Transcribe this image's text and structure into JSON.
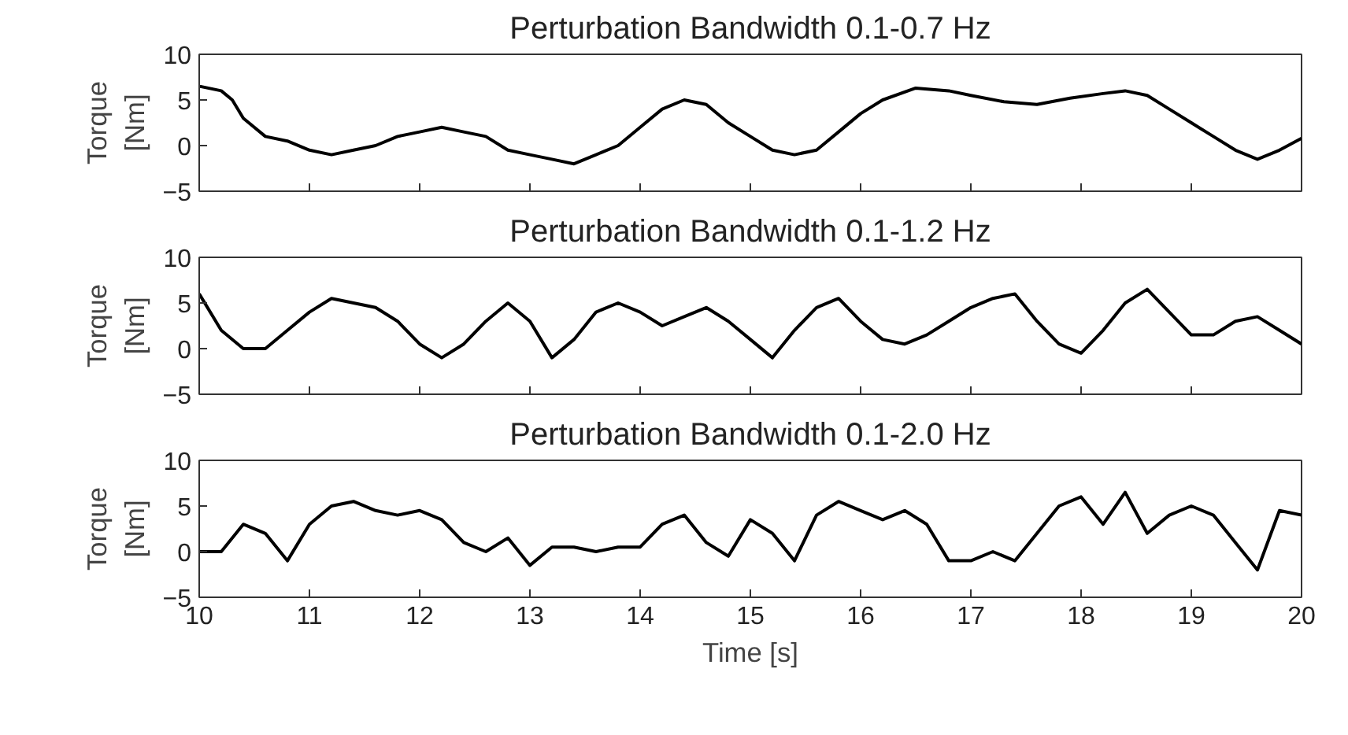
{
  "chart_data": [
    {
      "type": "line",
      "title": "Perturbation Bandwidth 0.1-0.7 Hz",
      "ylabel": "Torque\n[Nm]",
      "xlim": [
        10,
        20
      ],
      "xticks": [
        10,
        11,
        12,
        13,
        14,
        15,
        16,
        17,
        18,
        19,
        20
      ],
      "ylim": [
        -5,
        10
      ],
      "yticks": [
        -5,
        0,
        5,
        10
      ],
      "tick_labels": "y",
      "grid": false,
      "x": [
        10,
        10.2,
        10.3,
        10.4,
        10.6,
        10.8,
        11,
        11.2,
        11.4,
        11.6,
        11.8,
        12,
        12.2,
        12.4,
        12.6,
        12.8,
        13,
        13.2,
        13.4,
        13.6,
        13.8,
        14,
        14.2,
        14.4,
        14.6,
        14.8,
        15,
        15.2,
        15.4,
        15.6,
        15.8,
        16,
        16.2,
        16.5,
        16.8,
        17,
        17.3,
        17.6,
        17.9,
        18.2,
        18.4,
        18.6,
        18.8,
        19,
        19.2,
        19.4,
        19.6,
        19.8,
        20
      ],
      "series": [
        {
          "color": "#000000",
          "values": [
            6.5,
            6,
            5,
            3,
            1,
            0.5,
            -0.5,
            -1,
            -0.5,
            0,
            1,
            1.5,
            2,
            1.5,
            1,
            -0.5,
            -1,
            -1.5,
            -2,
            -1,
            0,
            2,
            4,
            5,
            4.5,
            2.5,
            1,
            -0.5,
            -1,
            -0.5,
            1.5,
            3.5,
            5,
            6.3,
            6,
            5.5,
            4.8,
            4.5,
            5.2,
            5.7,
            6,
            5.5,
            4,
            2.5,
            1,
            -0.5,
            -1.5,
            -0.5,
            0.8
          ]
        }
      ]
    },
    {
      "type": "line",
      "title": "Perturbation Bandwidth 0.1-1.2 Hz",
      "ylabel": "Torque\n[Nm]",
      "xlim": [
        10,
        20
      ],
      "xticks": [
        10,
        11,
        12,
        13,
        14,
        15,
        16,
        17,
        18,
        19,
        20
      ],
      "ylim": [
        -5,
        10
      ],
      "yticks": [
        -5,
        0,
        5,
        10
      ],
      "tick_labels": "y",
      "grid": false,
      "x": [
        10,
        10.2,
        10.4,
        10.6,
        10.8,
        11,
        11.2,
        11.4,
        11.6,
        11.8,
        12,
        12.2,
        12.4,
        12.6,
        12.8,
        13,
        13.2,
        13.4,
        13.6,
        13.8,
        14,
        14.2,
        14.4,
        14.6,
        14.8,
        15,
        15.2,
        15.4,
        15.6,
        15.8,
        16,
        16.2,
        16.4,
        16.6,
        16.8,
        17,
        17.2,
        17.4,
        17.6,
        17.8,
        18,
        18.2,
        18.4,
        18.6,
        18.8,
        19,
        19.2,
        19.4,
        19.6,
        19.8,
        20
      ],
      "series": [
        {
          "color": "#000000",
          "values": [
            6,
            2,
            0,
            0,
            2,
            4,
            5.5,
            5,
            4.5,
            3,
            0.5,
            -1,
            0.5,
            3,
            5,
            3,
            -1,
            1,
            4,
            5,
            4,
            2.5,
            3.5,
            4.5,
            3,
            1,
            -1,
            2,
            4.5,
            5.5,
            3,
            1,
            0.5,
            1.5,
            3,
            4.5,
            5.5,
            6,
            3,
            0.5,
            -0.5,
            2,
            5,
            6.5,
            4,
            1.5,
            1.5,
            3,
            3.5,
            2,
            0.5
          ]
        }
      ]
    },
    {
      "type": "line",
      "title": "Perturbation Bandwidth 0.1-2.0 Hz",
      "ylabel": "Torque\n[Nm]",
      "xlabel": "Time [s]",
      "xlim": [
        10,
        20
      ],
      "xticks": [
        10,
        11,
        12,
        13,
        14,
        15,
        16,
        17,
        18,
        19,
        20
      ],
      "ylim": [
        -5,
        10
      ],
      "yticks": [
        -5,
        0,
        5,
        10
      ],
      "grid": false,
      "x": [
        10,
        10.2,
        10.4,
        10.6,
        10.8,
        11,
        11.2,
        11.4,
        11.6,
        11.8,
        12,
        12.2,
        12.4,
        12.6,
        12.8,
        13,
        13.2,
        13.4,
        13.6,
        13.8,
        14,
        14.2,
        14.4,
        14.6,
        14.8,
        15,
        15.2,
        15.4,
        15.6,
        15.8,
        16,
        16.2,
        16.4,
        16.6,
        16.8,
        17,
        17.2,
        17.4,
        17.6,
        17.8,
        18,
        18.2,
        18.4,
        18.6,
        18.8,
        19,
        19.2,
        19.4,
        19.6,
        19.8,
        20
      ],
      "series": [
        {
          "color": "#000000",
          "values": [
            0,
            0,
            3,
            2,
            -1,
            3,
            5,
            5.5,
            4.5,
            4,
            4.5,
            3.5,
            1,
            0,
            1.5,
            -1.5,
            0.5,
            0.5,
            0,
            0.5,
            0.5,
            3,
            4,
            1,
            -0.5,
            3.5,
            2,
            -1,
            4,
            5.5,
            4.5,
            3.5,
            4.5,
            3,
            -1,
            -1,
            0,
            -1,
            2,
            5,
            6,
            3,
            6.5,
            2,
            4,
            5,
            4,
            1,
            -2,
            4.5,
            4
          ]
        }
      ]
    }
  ]
}
